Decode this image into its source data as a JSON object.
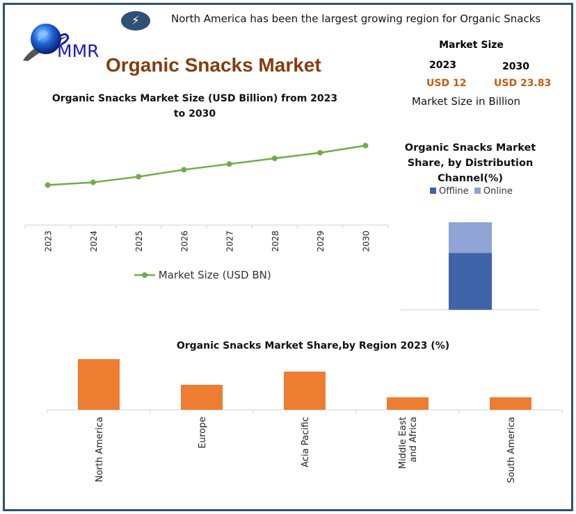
{
  "header": {
    "icon": "lightning-bolt-icon",
    "headline": "North America has been the largest growing region for Organic Snacks",
    "logo_text": "MMR",
    "title": "Organic Snacks Market"
  },
  "market_size": {
    "heading": "Market Size",
    "year_start": "2023",
    "year_end": "2030",
    "value_start": "USD 12",
    "value_end": "USD 23.83",
    "note": "Market Size in Billion"
  },
  "colors": {
    "frame": "#2f5077",
    "title": "#843c0c",
    "value_text": "#c55a11",
    "line": "#70ad47",
    "region_bars": "#ed7d31",
    "offline": "#3f64aa",
    "online": "#8fa3d5"
  },
  "chart_data": [
    {
      "type": "line",
      "title": "Organic Snacks Market Size (USD Billion) from 2023 to 2030",
      "categories": [
        "2023",
        "2024",
        "2025",
        "2026",
        "2027",
        "2028",
        "2029",
        "2030"
      ],
      "series": [
        {
          "name": "Market Size (USD BN)",
          "values": [
            12,
            12.8,
            14.5,
            16.6,
            18.3,
            20.0,
            21.7,
            23.83
          ]
        }
      ],
      "ylim": [
        0,
        30
      ],
      "grid": false,
      "legend": "bottom"
    },
    {
      "type": "bar",
      "stacked": true,
      "title": "Organic Snacks Market Share, by Distribution Channel(%)",
      "categories": [
        ""
      ],
      "series": [
        {
          "name": "Offline",
          "values": [
            65
          ]
        },
        {
          "name": "Online",
          "values": [
            35
          ]
        }
      ],
      "ylim": [
        0,
        100
      ],
      "legend": "top"
    },
    {
      "type": "bar",
      "title": "Organic Snacks Market Share,by Region 2023 (%)",
      "categories": [
        "North America",
        "Europe",
        "Acia Pacific",
        "Middle East and Africa",
        "South America"
      ],
      "values": [
        36.5,
        18,
        27.5,
        9,
        9
      ],
      "ylim": [
        0,
        40
      ],
      "grid": false
    }
  ]
}
